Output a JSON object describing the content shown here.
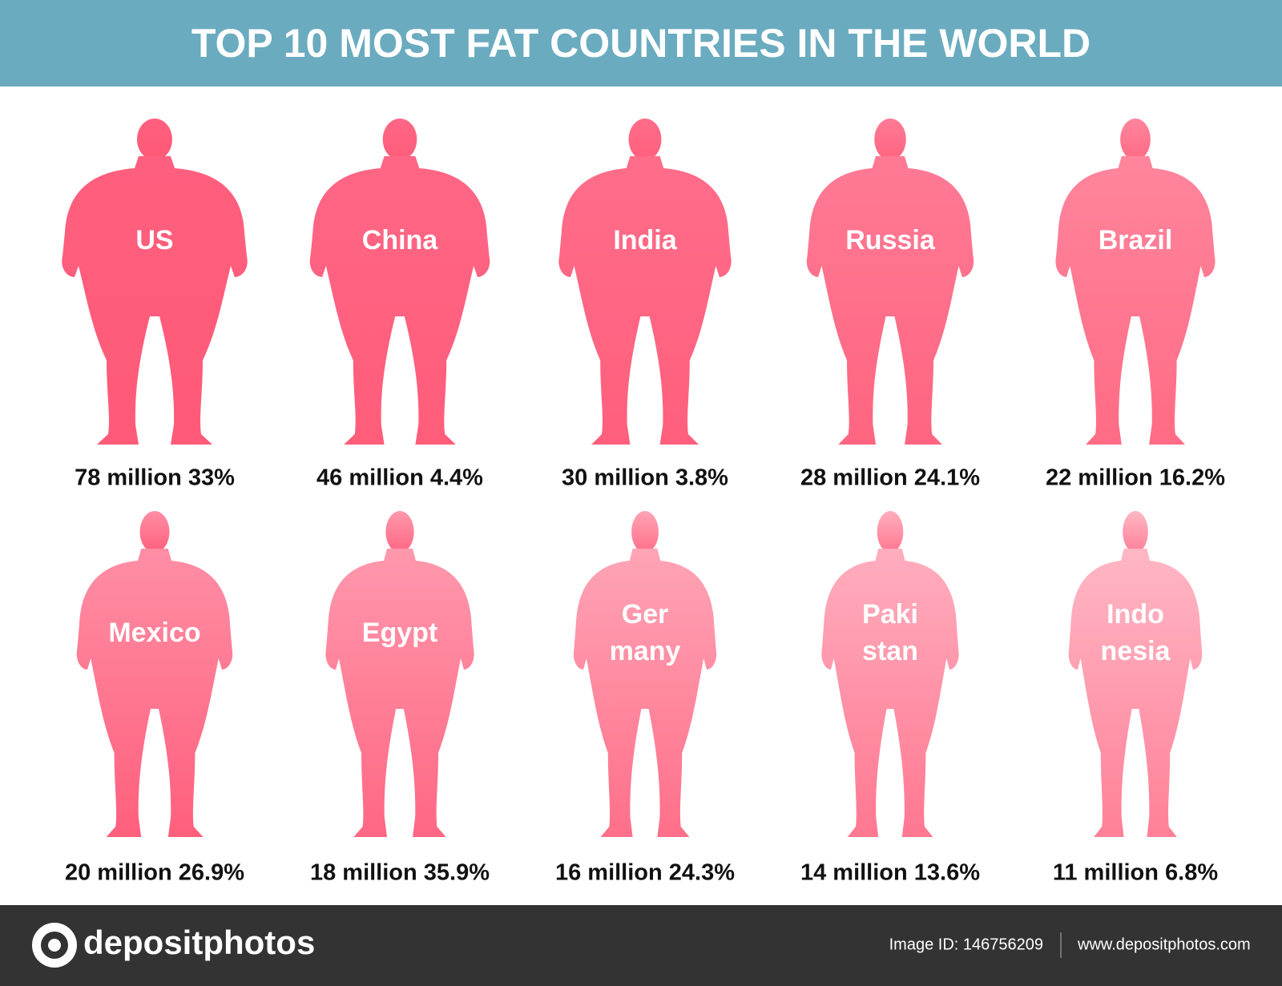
{
  "header": {
    "title": "TOP 10 MOST FAT COUNTRIES IN THE WORLD"
  },
  "items": [
    {
      "label": [
        "US"
      ],
      "caption": "78 million 33%"
    },
    {
      "label": [
        "China"
      ],
      "caption": "46 million 4.4%"
    },
    {
      "label": [
        "India"
      ],
      "caption": "30 million 3.8%"
    },
    {
      "label": [
        "Russia"
      ],
      "caption": "28 million 24.1%"
    },
    {
      "label": [
        "Brazil"
      ],
      "caption": "22 million 16.2%"
    },
    {
      "label": [
        "Mexico"
      ],
      "caption": "20 million 26.9%"
    },
    {
      "label": [
        "Egypt"
      ],
      "caption": "18 million 35.9%"
    },
    {
      "label": [
        "Ger",
        "many"
      ],
      "caption": "16 million 24.3%"
    },
    {
      "label": [
        "Paki",
        "stan"
      ],
      "caption": "14 million 13.6%"
    },
    {
      "label": [
        "Indo",
        "nesia"
      ],
      "caption": "11 million 6.8%"
    }
  ],
  "footer": {
    "logo": "depositphotos",
    "image_id": "Image ID: 146756209",
    "website": "www.depositphotos.com"
  }
}
